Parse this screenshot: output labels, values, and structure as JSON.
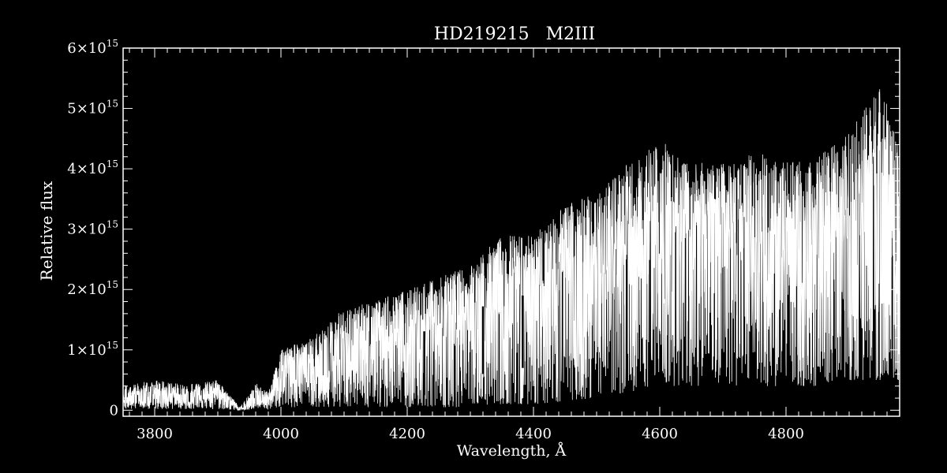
{
  "chart_data": {
    "type": "line",
    "title": "HD219215   M2III",
    "xlabel": "Wavelength, Å",
    "ylabel": "Relative flux",
    "xlim": [
      3750,
      4980
    ],
    "ylim": [
      -100000000000000.0,
      6000000000000000.0
    ],
    "x_major_ticks": [
      3800,
      4000,
      4200,
      4400,
      4600,
      4800
    ],
    "x_tick_labels": [
      "3800",
      "4000",
      "4200",
      "4400",
      "4600",
      "4800"
    ],
    "y_major_ticks": [
      0,
      1000000000000000.0,
      2000000000000000.0,
      3000000000000000.0,
      4000000000000000.0,
      5000000000000000.0,
      6000000000000000.0
    ],
    "y_tick_labels": [
      {
        "mantissa": "0",
        "exponent": ""
      },
      {
        "mantissa": "1×10",
        "exponent": "15"
      },
      {
        "mantissa": "2×10",
        "exponent": "15"
      },
      {
        "mantissa": "3×10",
        "exponent": "15"
      },
      {
        "mantissa": "4×10",
        "exponent": "15"
      },
      {
        "mantissa": "5×10",
        "exponent": "15"
      },
      {
        "mantissa": "6×10",
        "exponent": "15"
      }
    ],
    "grid": false,
    "series": [
      {
        "color": "#ffffff",
        "envelope": [
          {
            "x": 3750,
            "y_max": 400000000000000.0,
            "y_mid": 150000000000000.0,
            "y_min": 20000000000000.0
          },
          {
            "x": 3800,
            "y_max": 500000000000000.0,
            "y_mid": 200000000000000.0,
            "y_min": 20000000000000.0
          },
          {
            "x": 3850,
            "y_max": 420000000000000.0,
            "y_mid": 150000000000000.0,
            "y_min": 20000000000000.0
          },
          {
            "x": 3900,
            "y_max": 500000000000000.0,
            "y_mid": 250000000000000.0,
            "y_min": 20000000000000.0
          },
          {
            "x": 3935,
            "y_max": 50000000000000.0,
            "y_mid": 20000000000000.0,
            "y_min": 0.0
          },
          {
            "x": 3960,
            "y_max": 450000000000000.0,
            "y_mid": 150000000000000.0,
            "y_min": 20000000000000.0
          },
          {
            "x": 3980,
            "y_max": 300000000000000.0,
            "y_mid": 150000000000000.0,
            "y_min": 20000000000000.0
          },
          {
            "x": 4000,
            "y_max": 1000000000000000.0,
            "y_mid": 600000000000000.0,
            "y_min": 50000000000000.0
          },
          {
            "x": 4050,
            "y_max": 1200000000000000.0,
            "y_mid": 750000000000000.0,
            "y_min": 50000000000000.0
          },
          {
            "x": 4100,
            "y_max": 1700000000000000.0,
            "y_mid": 1100000000000000.0,
            "y_min": 50000000000000.0
          },
          {
            "x": 4150,
            "y_max": 1800000000000000.0,
            "y_mid": 1150000000000000.0,
            "y_min": 50000000000000.0
          },
          {
            "x": 4200,
            "y_max": 2000000000000000.0,
            "y_mid": 1200000000000000.0,
            "y_min": 50000000000000.0
          },
          {
            "x": 4250,
            "y_max": 2200000000000000.0,
            "y_mid": 1400000000000000.0,
            "y_min": 50000000000000.0
          },
          {
            "x": 4300,
            "y_max": 2400000000000000.0,
            "y_mid": 1600000000000000.0,
            "y_min": 50000000000000.0
          },
          {
            "x": 4350,
            "y_max": 2900000000000000.0,
            "y_mid": 1900000000000000.0,
            "y_min": 100000000000000.0
          },
          {
            "x": 4400,
            "y_max": 2900000000000000.0,
            "y_mid": 1900000000000000.0,
            "y_min": 100000000000000.0
          },
          {
            "x": 4450,
            "y_max": 3400000000000000.0,
            "y_mid": 2200000000000000.0,
            "y_min": 150000000000000.0
          },
          {
            "x": 4500,
            "y_max": 3600000000000000.0,
            "y_mid": 2400000000000000.0,
            "y_min": 200000000000000.0
          },
          {
            "x": 4550,
            "y_max": 4100000000000000.0,
            "y_mid": 2700000000000000.0,
            "y_min": 300000000000000.0
          },
          {
            "x": 4600,
            "y_max": 4500000000000000.0,
            "y_mid": 2800000000000000.0,
            "y_min": 400000000000000.0
          },
          {
            "x": 4650,
            "y_max": 4100000000000000.0,
            "y_mid": 2700000000000000.0,
            "y_min": 400000000000000.0
          },
          {
            "x": 4700,
            "y_max": 4100000000000000.0,
            "y_mid": 2700000000000000.0,
            "y_min": 400000000000000.0
          },
          {
            "x": 4750,
            "y_max": 4300000000000000.0,
            "y_mid": 2800000000000000.0,
            "y_min": 400000000000000.0
          },
          {
            "x": 4800,
            "y_max": 4100000000000000.0,
            "y_mid": 2700000000000000.0,
            "y_min": 400000000000000.0
          },
          {
            "x": 4850,
            "y_max": 4200000000000000.0,
            "y_mid": 2800000000000000.0,
            "y_min": 400000000000000.0
          },
          {
            "x": 4900,
            "y_max": 4600000000000000.0,
            "y_mid": 3000000000000000.0,
            "y_min": 500000000000000.0
          },
          {
            "x": 4950,
            "y_max": 5400000000000000.0,
            "y_mid": 3100000000000000.0,
            "y_min": 500000000000000.0
          },
          {
            "x": 4980,
            "y_max": 4500000000000000.0,
            "y_mid": 3000000000000000.0,
            "y_min": 500000000000000.0
          }
        ],
        "absorption_lines": [
          {
            "x": 4227,
            "y": 250000000000000.0
          },
          {
            "x": 4320,
            "y": 600000000000000.0
          },
          {
            "x": 4383,
            "y": 700000000000000.0
          }
        ]
      }
    ]
  }
}
